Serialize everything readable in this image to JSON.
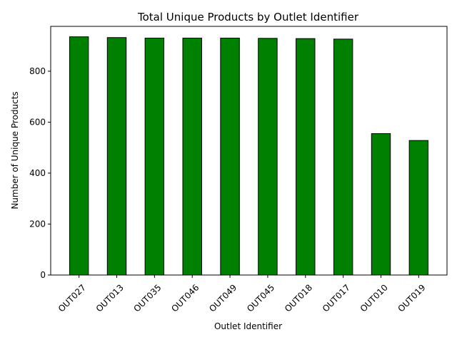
{
  "chart_data": {
    "type": "bar",
    "title": "Total Unique Products by Outlet Identifier",
    "xlabel": "Outlet Identifier",
    "ylabel": "Number of Unique Products",
    "categories": [
      "OUT027",
      "OUT013",
      "OUT035",
      "OUT046",
      "OUT049",
      "OUT045",
      "OUT018",
      "OUT017",
      "OUT010",
      "OUT019"
    ],
    "values": [
      935,
      932,
      930,
      930,
      930,
      929,
      928,
      926,
      555,
      528
    ],
    "ylim": [
      0,
      976
    ],
    "yticks": [
      0,
      200,
      400,
      600,
      800
    ],
    "bar_color": "#008000",
    "edge_color": "#000000",
    "grid": false,
    "legend": "none"
  }
}
